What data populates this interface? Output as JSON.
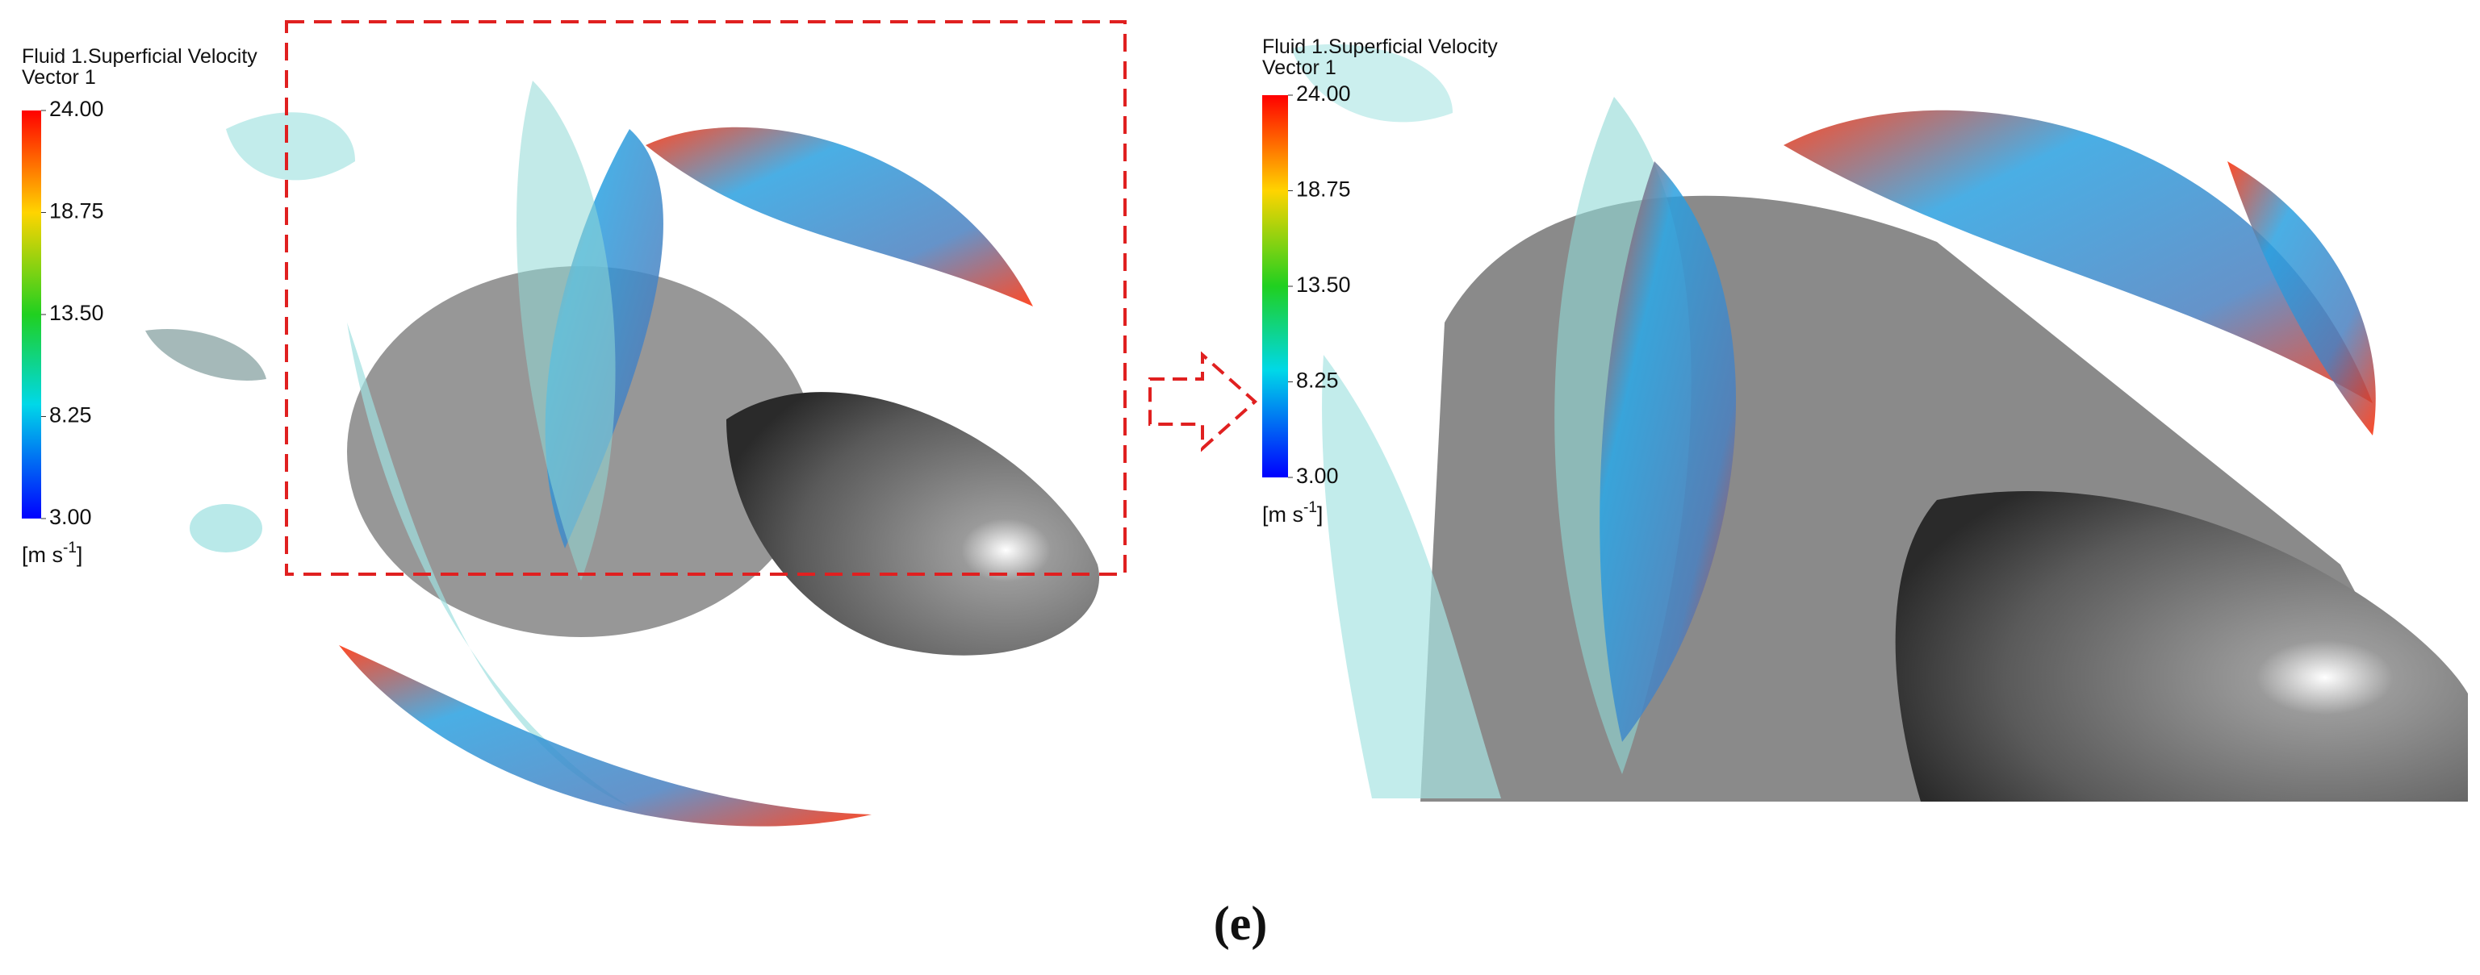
{
  "panels": [
    {
      "legend": {
        "title": "Fluid 1.Superficial Velocity",
        "subtitle": "Vector 1",
        "ticks": [
          {
            "value": 24,
            "label": "24.00"
          },
          {
            "value": 18.75,
            "label": "18.75"
          },
          {
            "value": 13.5,
            "label": "13.50"
          },
          {
            "value": 8.25,
            "label": "8.25"
          },
          {
            "value": 3,
            "label": "3.00"
          }
        ],
        "unit": "[m s",
        "unit_exponent": "-1",
        "unit_end": "]"
      }
    },
    {
      "legend": {
        "title": "Fluid 1.Superficial Velocity",
        "subtitle": "Vector 1",
        "ticks": [
          {
            "value": 24,
            "label": "24.00"
          },
          {
            "value": 18.75,
            "label": "18.75"
          },
          {
            "value": 13.5,
            "label": "13.50"
          },
          {
            "value": 8.25,
            "label": "8.25"
          },
          {
            "value": 3,
            "label": "3.00"
          }
        ],
        "unit": "[m s",
        "unit_exponent": "-1",
        "unit_end": "]"
      }
    }
  ],
  "caption": "(e)"
}
